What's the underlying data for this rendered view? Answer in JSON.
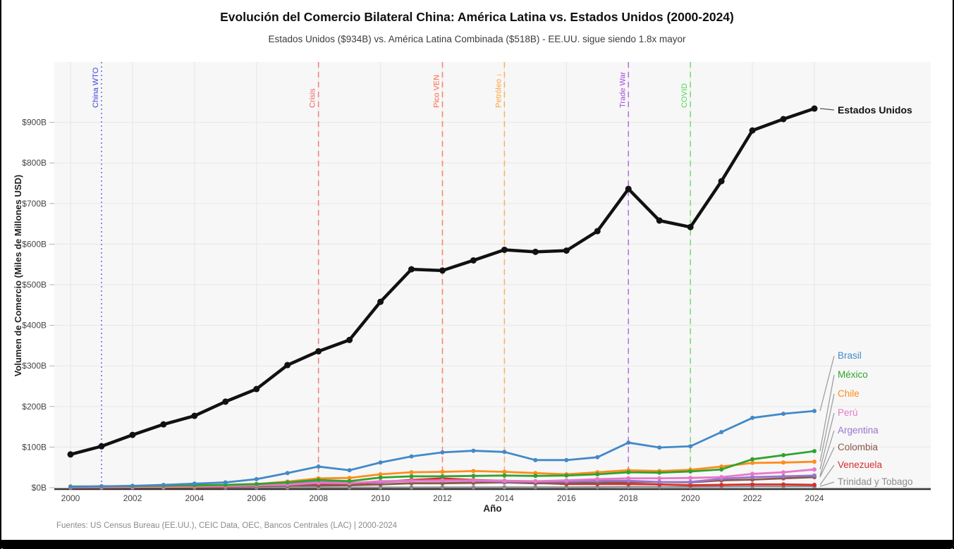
{
  "chart_data": {
    "type": "line",
    "title": "Evolución del Comercio Bilateral China: América Latina vs. Estados Unidos (2000-2024)",
    "subtitle": "Estados Unidos ($934B) vs. América Latina Combinada ($518B) - EE.UU. sigue siendo 1.8x mayor",
    "xlabel": "Año",
    "ylabel": "Volumen de Comercio (Miles de Millones USD)",
    "footer": "Fuentes: US Census Bureau (EE.UU.), CEIC Data, OEC, Bancos Centrales (LAC) | 2000-2024",
    "x": [
      2000,
      2001,
      2002,
      2003,
      2004,
      2005,
      2006,
      2007,
      2008,
      2009,
      2010,
      2011,
      2012,
      2013,
      2014,
      2015,
      2016,
      2017,
      2018,
      2019,
      2020,
      2021,
      2022,
      2023,
      2024
    ],
    "x_tick_labels": [
      "2000",
      "2002",
      "2004",
      "2006",
      "2008",
      "2010",
      "2012",
      "2014",
      "2016",
      "2018",
      "2020",
      "2022",
      "2024"
    ],
    "y_tick_values": [
      0,
      100,
      200,
      300,
      400,
      500,
      600,
      700,
      800,
      900
    ],
    "y_tick_labels": [
      "$0B",
      "$100B",
      "$200B",
      "$300B",
      "$400B",
      "$500B",
      "$600B",
      "$700B",
      "$800B",
      "$900B"
    ],
    "ylim": [
      0,
      1050
    ],
    "grid": true,
    "legend_position": "end-of-line-labels",
    "series": [
      {
        "name": "Estados Unidos",
        "color": "#111111",
        "values": [
          82,
          102,
          130,
          156,
          177,
          212,
          243,
          302,
          336,
          364,
          458,
          538,
          535,
          560,
          586,
          581,
          584,
          632,
          736,
          658,
          642,
          755,
          880,
          908,
          934
        ]
      },
      {
        "name": "Brasil",
        "color": "#4289c8",
        "values": [
          2.3,
          3.2,
          4.5,
          6.8,
          10,
          13,
          21,
          36,
          52,
          43,
          62,
          77,
          87,
          91,
          88,
          68,
          68,
          75,
          111,
          99,
          102,
          137,
          172,
          182,
          189
        ]
      },
      {
        "name": "México",
        "color": "#2fa32f",
        "values": [
          3,
          3.5,
          4,
          5,
          6,
          7,
          9,
          13,
          19,
          16,
          25,
          28,
          28,
          29,
          30,
          29,
          30,
          33,
          38,
          37,
          40,
          45,
          70,
          80,
          90
        ]
      },
      {
        "name": "Chile",
        "color": "#ff8c1a",
        "values": [
          2,
          2.5,
          3,
          4,
          5,
          7,
          9,
          15,
          23,
          24,
          33,
          38,
          39,
          41,
          39,
          36,
          33,
          38,
          43,
          41,
          44,
          52,
          61,
          62,
          64
        ]
      },
      {
        "name": "Perú",
        "color": "#e878c8",
        "values": [
          1,
          1.2,
          1.5,
          2,
          3,
          4,
          5.5,
          7.5,
          12,
          11,
          16,
          17,
          18,
          18,
          17,
          16,
          18,
          21,
          23,
          23,
          24,
          26,
          34,
          38,
          45
        ]
      },
      {
        "name": "Argentina",
        "color": "#9775cf",
        "values": [
          2,
          2.3,
          2.7,
          3.5,
          4.5,
          5.5,
          7,
          10,
          14,
          12,
          14,
          17,
          17,
          17,
          15,
          15,
          15,
          17,
          17,
          14,
          14,
          22,
          26,
          28,
          30
        ]
      },
      {
        "name": "Colombia",
        "color": "#8c564b",
        "values": [
          0.5,
          0.7,
          1,
          1.4,
          2,
          3,
          4,
          5,
          5.5,
          6,
          8,
          11,
          11,
          12,
          13,
          11,
          11,
          12,
          14,
          14,
          13,
          18,
          20,
          23,
          26
        ]
      },
      {
        "name": "Venezuela",
        "color": "#d62f2f",
        "values": [
          0.3,
          0.5,
          0.8,
          1,
          1.5,
          2.2,
          4,
          6,
          10,
          9,
          14,
          19,
          23,
          19,
          17,
          12,
          9,
          9,
          9,
          8,
          6,
          7,
          8,
          8,
          7
        ]
      },
      {
        "name": "Trinidad y Tobago",
        "color": "#8c8c8c",
        "values": [
          0.1,
          0.1,
          0.2,
          0.2,
          0.3,
          0.3,
          0.4,
          0.5,
          0.6,
          0.5,
          0.6,
          0.8,
          1,
          1,
          1.1,
          1.2,
          1.2,
          1.5,
          2,
          2,
          2,
          2.5,
          3,
          3,
          3.2
        ]
      }
    ],
    "events": [
      {
        "label": "China WTO",
        "year": 2001,
        "color": "#4545dd",
        "style": "dotted"
      },
      {
        "label": "Crisis",
        "year": 2008,
        "color": "#ee6363",
        "style": "dashed"
      },
      {
        "label": "Pico VEN",
        "year": 2012,
        "color": "#ff6347",
        "style": "dashed"
      },
      {
        "label": "Petróleo ↓",
        "year": 2014,
        "color": "#ffa033",
        "style": "dashed"
      },
      {
        "label": "Trade War",
        "year": 2018,
        "color": "#a64dd9",
        "style": "dashed"
      },
      {
        "label": "COVID",
        "year": 2020,
        "color": "#52d952",
        "style": "dashed"
      }
    ]
  }
}
